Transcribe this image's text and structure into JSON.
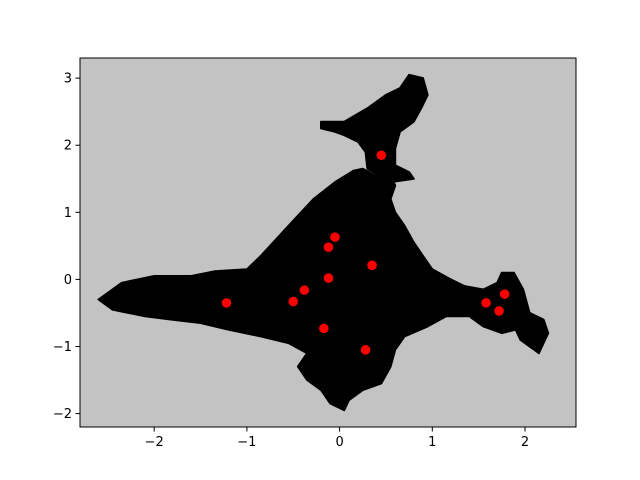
{
  "chart_data": {
    "type": "scatter",
    "title": "",
    "xlabel": "",
    "ylabel": "",
    "xlim": [
      -2.8,
      2.55
    ],
    "ylim": [
      -2.2,
      3.3
    ],
    "x_ticks": [
      -2,
      -1,
      0,
      1,
      2
    ],
    "x_tick_labels": [
      "−2",
      "−1",
      "0",
      "1",
      "2"
    ],
    "y_ticks": [
      -2,
      -1,
      0,
      1,
      2,
      3
    ],
    "y_tick_labels": [
      "−2",
      "−1",
      "0",
      "1",
      "2",
      "3"
    ],
    "grid": false,
    "background_color": "#c3c3c3",
    "region_color": "#000000",
    "point_color": "#ff0000",
    "region_outline": [
      [
        -2.45,
        -0.45
      ],
      [
        -2.6,
        -0.3
      ],
      [
        -2.35,
        -0.05
      ],
      [
        -2.0,
        0.05
      ],
      [
        -1.6,
        0.05
      ],
      [
        -1.35,
        0.12
      ],
      [
        -1.0,
        0.15
      ],
      [
        -0.85,
        0.35
      ],
      [
        -0.65,
        0.65
      ],
      [
        -0.45,
        0.95
      ],
      [
        -0.28,
        1.2
      ],
      [
        -0.05,
        1.45
      ],
      [
        0.15,
        1.62
      ],
      [
        0.25,
        1.65
      ],
      [
        0.38,
        1.55
      ],
      [
        0.55,
        1.55
      ],
      [
        0.6,
        1.4
      ],
      [
        0.55,
        1.2
      ],
      [
        0.6,
        1.0
      ],
      [
        0.7,
        0.8
      ],
      [
        0.8,
        0.55
      ],
      [
        0.9,
        0.35
      ],
      [
        1.0,
        0.15
      ],
      [
        1.2,
        0.0
      ],
      [
        1.35,
        -0.1
      ],
      [
        1.55,
        -0.15
      ],
      [
        1.7,
        -0.05
      ],
      [
        1.75,
        0.1
      ],
      [
        1.88,
        0.1
      ],
      [
        1.98,
        -0.15
      ],
      [
        2.05,
        -0.5
      ],
      [
        2.2,
        -0.6
      ],
      [
        2.25,
        -0.8
      ],
      [
        2.15,
        -1.1
      ],
      [
        1.95,
        -0.9
      ],
      [
        1.9,
        -0.75
      ],
      [
        1.75,
        -0.8
      ],
      [
        1.55,
        -0.7
      ],
      [
        1.4,
        -0.55
      ],
      [
        1.15,
        -0.55
      ],
      [
        0.95,
        -0.7
      ],
      [
        0.7,
        -0.85
      ],
      [
        0.6,
        -1.05
      ],
      [
        0.55,
        -1.3
      ],
      [
        0.45,
        -1.55
      ],
      [
        0.25,
        -1.65
      ],
      [
        0.1,
        -1.8
      ],
      [
        0.05,
        -1.95
      ],
      [
        -0.1,
        -1.85
      ],
      [
        -0.2,
        -1.65
      ],
      [
        -0.35,
        -1.5
      ],
      [
        -0.45,
        -1.3
      ],
      [
        -0.35,
        -1.1
      ],
      [
        -0.55,
        -0.95
      ],
      [
        -0.85,
        -0.85
      ],
      [
        -1.2,
        -0.75
      ],
      [
        -1.5,
        -0.65
      ],
      [
        -1.8,
        -0.6
      ],
      [
        -2.1,
        -0.55
      ]
    ],
    "region_outline_2": [
      [
        0.3,
        1.65
      ],
      [
        0.28,
        1.9
      ],
      [
        0.2,
        2.05
      ],
      [
        0.05,
        2.15
      ],
      [
        -0.05,
        2.2
      ],
      [
        -0.2,
        2.25
      ],
      [
        -0.2,
        2.35
      ],
      [
        0.05,
        2.35
      ],
      [
        0.3,
        2.55
      ],
      [
        0.5,
        2.75
      ],
      [
        0.65,
        2.85
      ],
      [
        0.75,
        3.05
      ],
      [
        0.9,
        3.0
      ],
      [
        0.95,
        2.75
      ],
      [
        0.88,
        2.55
      ],
      [
        0.8,
        2.35
      ],
      [
        0.65,
        2.2
      ],
      [
        0.6,
        1.95
      ],
      [
        0.6,
        1.7
      ],
      [
        0.75,
        1.6
      ],
      [
        0.8,
        1.5
      ],
      [
        0.55,
        1.45
      ]
    ],
    "points": [
      {
        "x": 0.45,
        "y": 1.85
      },
      {
        "x": -0.05,
        "y": 0.63
      },
      {
        "x": -0.12,
        "y": 0.48
      },
      {
        "x": 0.35,
        "y": 0.21
      },
      {
        "x": -0.12,
        "y": 0.02
      },
      {
        "x": -0.38,
        "y": -0.16
      },
      {
        "x": -1.22,
        "y": -0.35
      },
      {
        "x": -0.5,
        "y": -0.33
      },
      {
        "x": -0.17,
        "y": -0.73
      },
      {
        "x": 0.28,
        "y": -1.05
      },
      {
        "x": 1.58,
        "y": -0.35
      },
      {
        "x": 1.78,
        "y": -0.22
      },
      {
        "x": 1.72,
        "y": -0.47
      }
    ]
  }
}
